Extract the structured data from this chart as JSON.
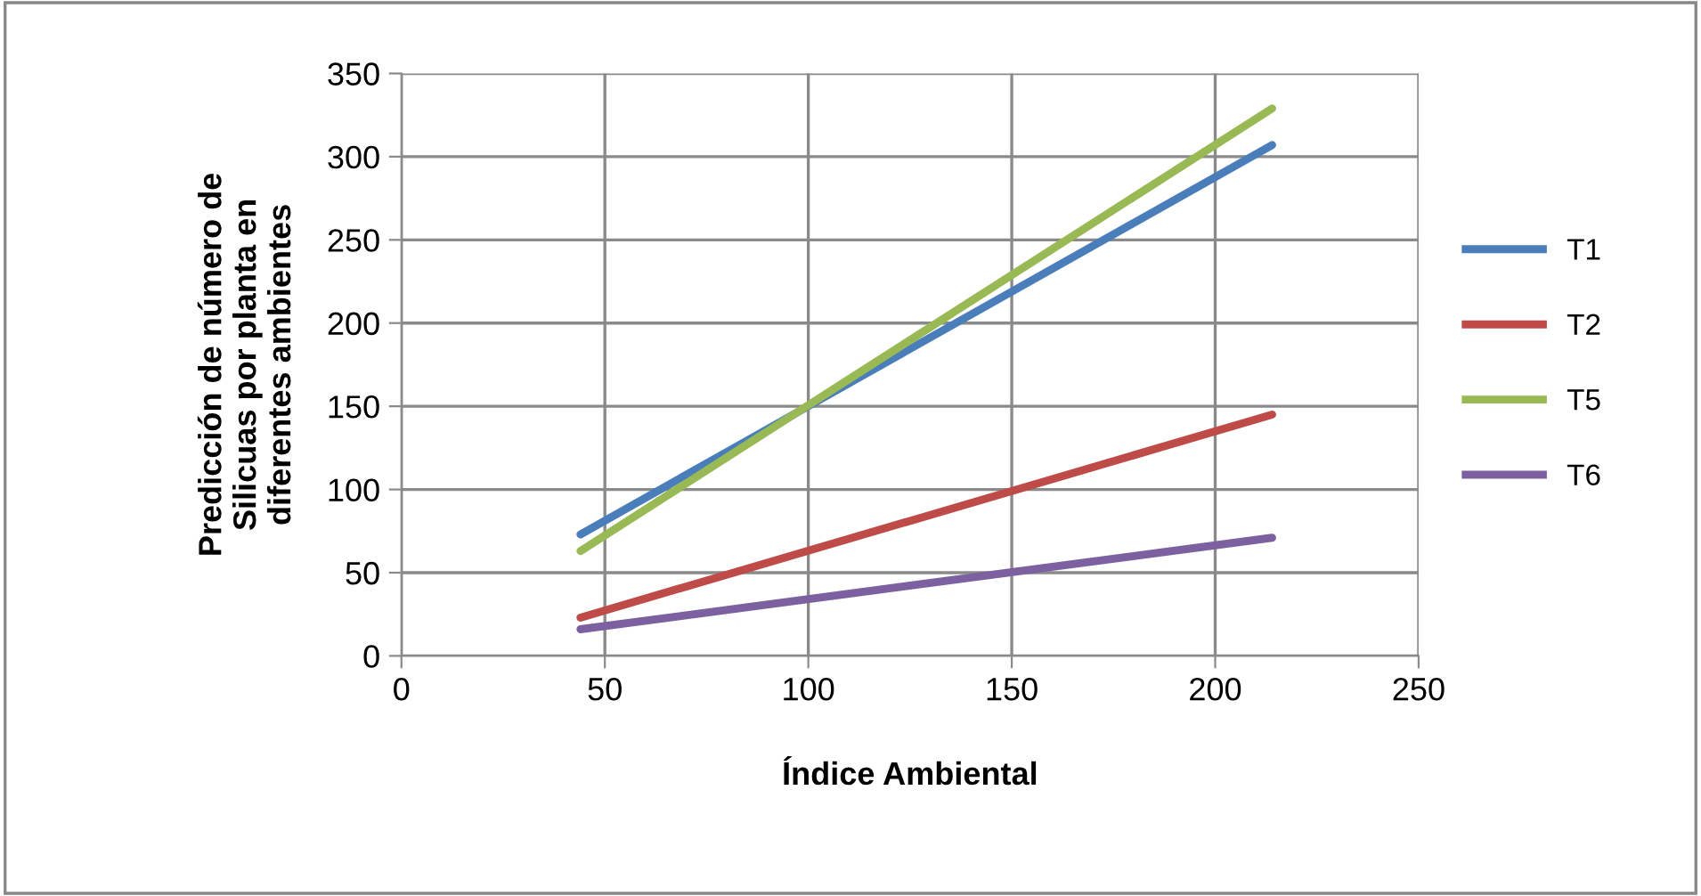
{
  "chart_data": {
    "type": "line",
    "xlabel": "Índice Ambiental",
    "ylabel": "Predicción de número de Silicuas por planta en diferentes ambientes",
    "x": [
      44,
      214
    ],
    "series": [
      {
        "name": "T1",
        "color": "#4a7ebb",
        "values": [
          73,
          307
        ]
      },
      {
        "name": "T2",
        "color": "#be4b48",
        "values": [
          23,
          145
        ]
      },
      {
        "name": "T5",
        "color": "#98b954",
        "values": [
          63,
          329
        ]
      },
      {
        "name": "T6",
        "color": "#7d60a0",
        "values": [
          16,
          71
        ]
      }
    ],
    "xlim": [
      0,
      250
    ],
    "xticks": [
      0,
      50,
      100,
      150,
      200,
      250
    ],
    "ylim": [
      0,
      350
    ],
    "yticks": [
      0,
      50,
      100,
      150,
      200,
      250,
      300,
      350
    ],
    "grid": true,
    "legend": "right",
    "marker": "none",
    "line_style": "solid"
  }
}
